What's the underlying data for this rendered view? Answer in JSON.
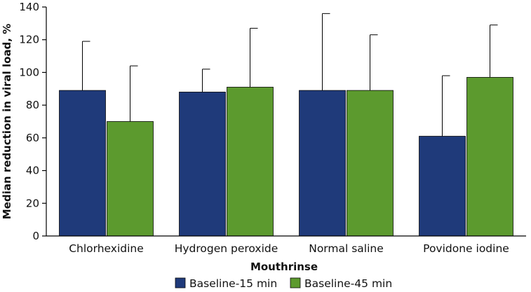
{
  "chart_data": {
    "type": "bar",
    "categories": [
      "Chlorhexidine",
      "Hydrogen peroxide",
      "Normal saline",
      "Povidone iodine"
    ],
    "series": [
      {
        "name": "Baseline-15 min",
        "color": "#1f3a7a",
        "values": [
          89,
          88,
          89,
          61
        ],
        "error_upper": [
          119,
          102,
          136,
          98
        ]
      },
      {
        "name": "Baseline-45 min",
        "color": "#5c9a2e",
        "values": [
          70,
          91,
          89,
          97
        ],
        "error_upper": [
          104,
          127,
          123,
          129
        ]
      }
    ],
    "xlabel": "Mouthrinse",
    "ylabel": "Median reduction in viral load, %",
    "ylim": [
      0,
      140
    ],
    "yticks": [
      0,
      20,
      40,
      60,
      80,
      100,
      120,
      140
    ],
    "grid": false,
    "legend_position": "bottom"
  }
}
